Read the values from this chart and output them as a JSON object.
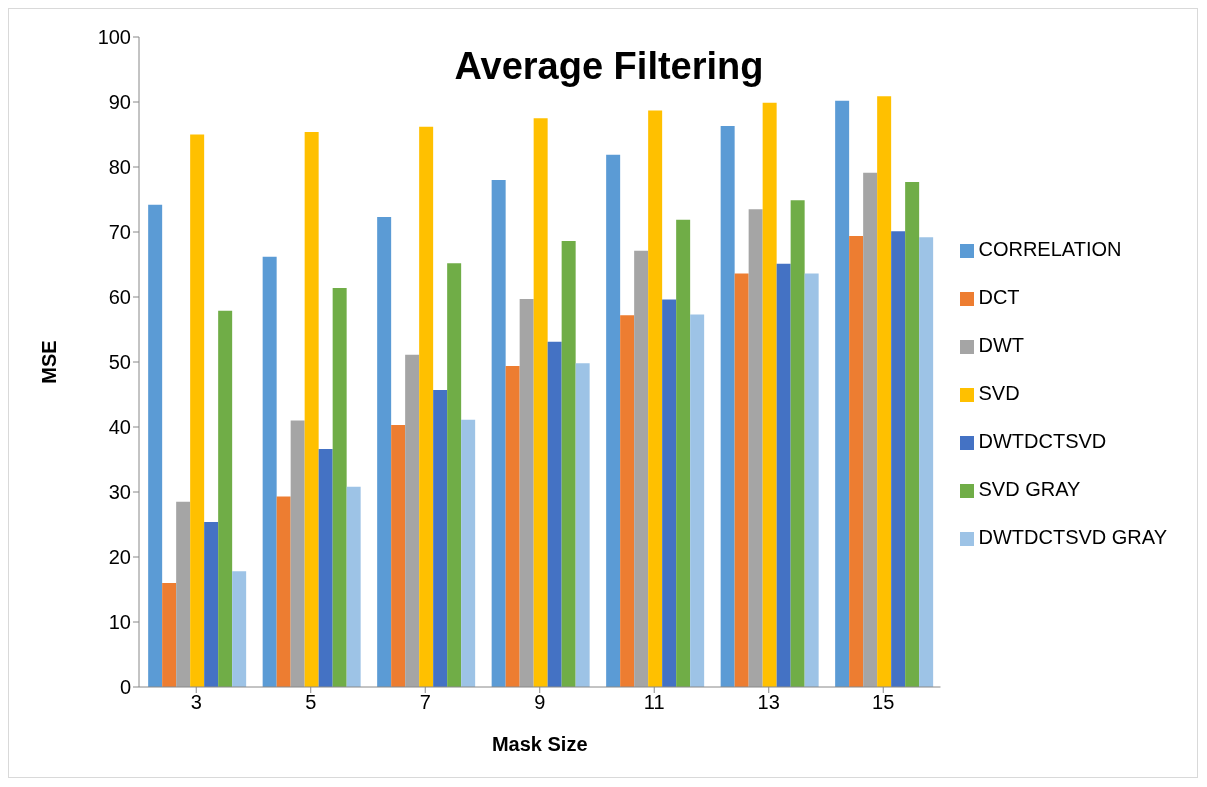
{
  "chart_data": {
    "type": "bar",
    "title": "Average Filtering",
    "xlabel": "Mask Size",
    "ylabel": "MSE",
    "categories": [
      "3",
      "5",
      "7",
      "9",
      "11",
      "13",
      "15"
    ],
    "series": [
      {
        "name": "CORRELATION",
        "color": "#5b9bd5",
        "values": [
          74.2,
          66.2,
          72.3,
          78,
          81.9,
          86.3,
          90.2
        ]
      },
      {
        "name": "DCT",
        "color": "#ed7d31",
        "values": [
          16,
          29.3,
          40.3,
          49.4,
          57.2,
          63.6,
          69.4
        ]
      },
      {
        "name": "DWT",
        "color": "#a5a5a5",
        "values": [
          28.5,
          41,
          51.1,
          59.7,
          67.1,
          73.5,
          79.1
        ]
      },
      {
        "name": "SVD",
        "color": "#ffc000",
        "values": [
          85,
          85.4,
          86.2,
          87.5,
          88.7,
          89.9,
          90.9
        ]
      },
      {
        "name": "DWTDCTSVD",
        "color": "#4472c4",
        "values": [
          25.4,
          36.6,
          45.7,
          53.1,
          59.6,
          65.1,
          70.1
        ]
      },
      {
        "name": "SVD GRAY",
        "color": "#70ad47",
        "values": [
          57.9,
          61.4,
          65.2,
          68.6,
          71.9,
          74.9,
          77.7
        ]
      },
      {
        "name": "DWTDCTSVD GRAY",
        "color": "#9dc3e6",
        "values": [
          17.8,
          30.8,
          41.1,
          49.8,
          57.3,
          63.6,
          69.2
        ]
      }
    ],
    "ylim": [
      0,
      100
    ],
    "yticks": [
      0,
      10,
      20,
      30,
      40,
      50,
      60,
      70,
      80,
      90,
      100
    ],
    "grid": false,
    "legend": "right"
  }
}
